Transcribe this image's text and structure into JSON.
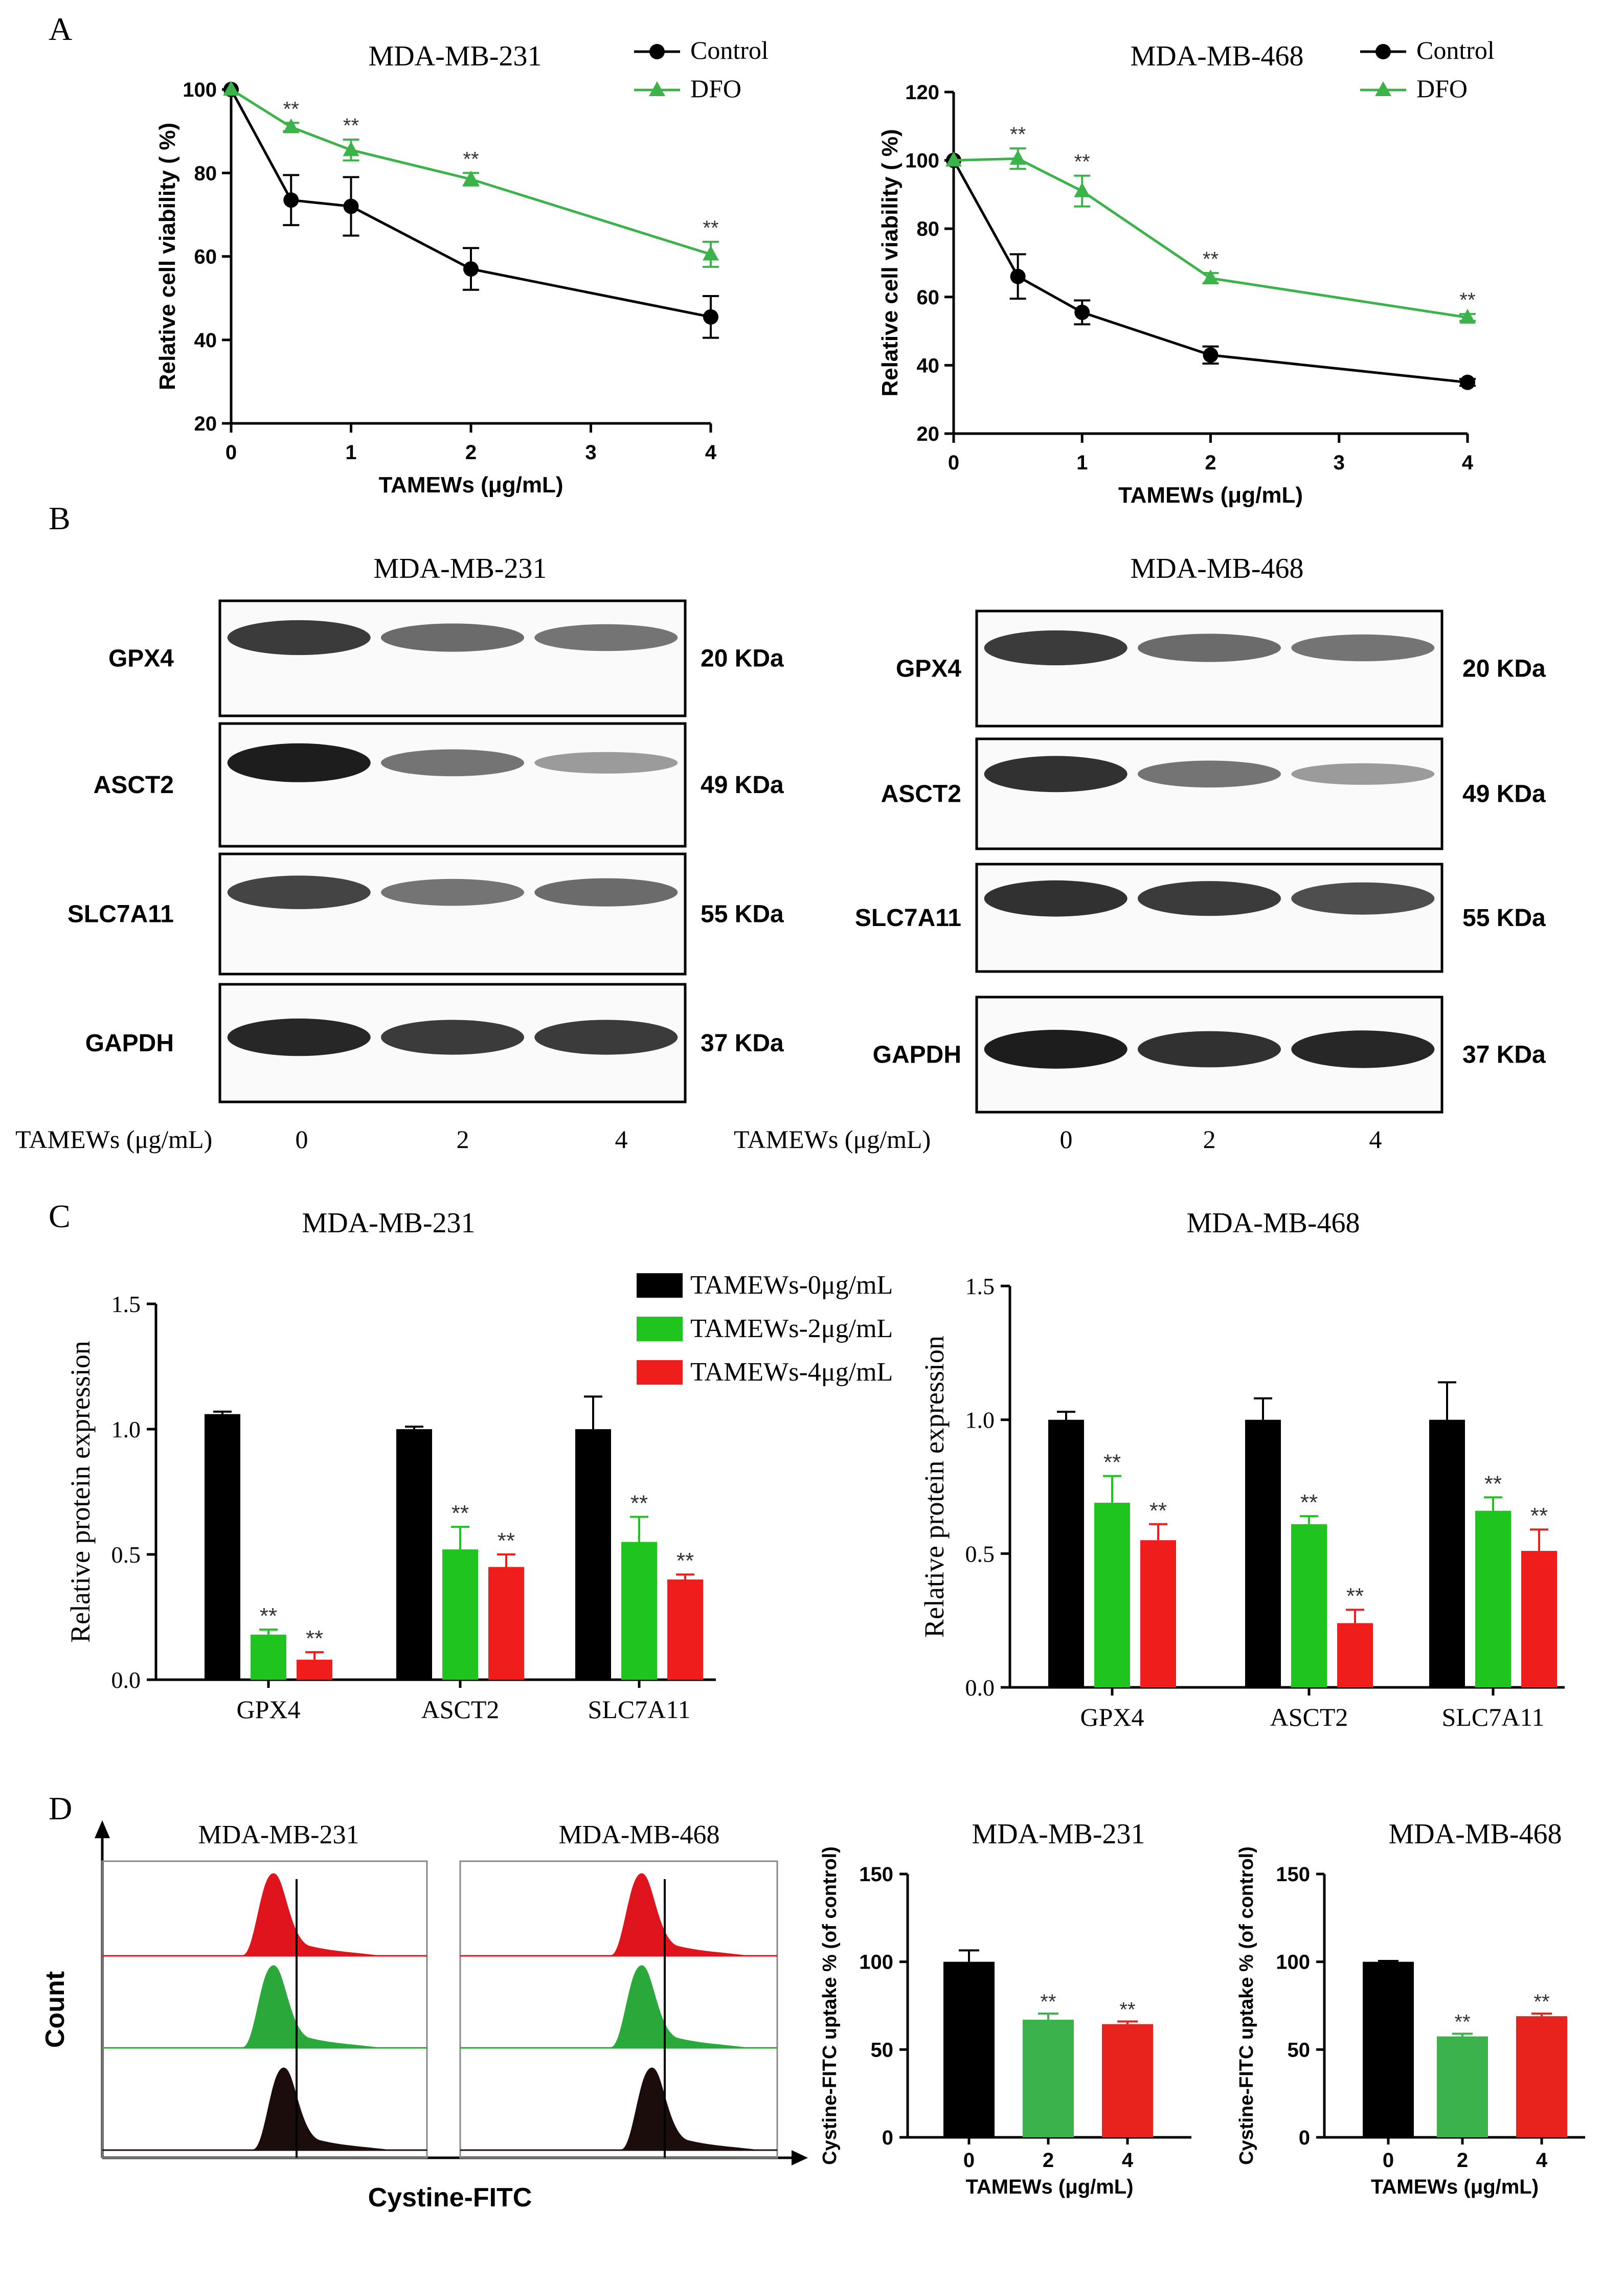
{
  "panels": {
    "A": {
      "label": "A",
      "chart_data": [
        {
          "type": "line",
          "title": "MDA-MB-231",
          "xlabel": "TAMEWs (μg/mL)",
          "ylabel": "Relative cell viability ( %)",
          "x_ticks": [
            "0",
            "1",
            "2",
            "3",
            "4"
          ],
          "y_ticks": [
            "20",
            "40",
            "60",
            "80",
            "100"
          ],
          "xlim": [
            0,
            4
          ],
          "ylim": [
            20,
            100
          ],
          "legend_position": "top-right",
          "series": [
            {
              "name": "Control",
              "color": "#000000",
              "marker": "circle",
              "x": [
                0,
                0.5,
                1,
                2,
                4
              ],
              "y": [
                100,
                73.5,
                72,
                57,
                45.5
              ],
              "err": [
                0,
                6,
                7,
                5,
                5
              ],
              "sig": [
                "",
                "",
                "",
                "",
                ""
              ]
            },
            {
              "name": "DFO",
              "color": "#3cb34a",
              "marker": "triangle",
              "x": [
                0,
                0.5,
                1,
                2,
                4
              ],
              "y": [
                100,
                91,
                85.5,
                78.5,
                60.5
              ],
              "err": [
                0,
                1,
                2.5,
                1.5,
                3
              ],
              "sig": [
                "",
                "**",
                "**",
                "**",
                "**"
              ]
            }
          ]
        },
        {
          "type": "line",
          "title": "MDA-MB-468",
          "xlabel": "TAMEWs (μg/mL)",
          "ylabel": "Relative cell viability ( %)",
          "x_ticks": [
            "0",
            "1",
            "2",
            "3",
            "4"
          ],
          "y_ticks": [
            "20",
            "40",
            "60",
            "80",
            "100",
            "120"
          ],
          "xlim": [
            0,
            4
          ],
          "ylim": [
            20,
            120
          ],
          "legend_position": "top-right",
          "series": [
            {
              "name": "Control",
              "color": "#000000",
              "marker": "circle",
              "x": [
                0,
                0.5,
                1,
                2,
                4
              ],
              "y": [
                100,
                66,
                55.5,
                43,
                35
              ],
              "err": [
                0,
                6.5,
                3.5,
                2.5,
                1
              ],
              "sig": [
                "",
                "",
                "",
                "",
                ""
              ]
            },
            {
              "name": "DFO",
              "color": "#3cb34a",
              "marker": "triangle",
              "x": [
                0,
                0.5,
                1,
                2,
                4
              ],
              "y": [
                100,
                100.5,
                91,
                65.5,
                54
              ],
              "err": [
                0,
                3,
                4.5,
                1.5,
                1
              ],
              "sig": [
                "",
                "**",
                "**",
                "**",
                "**"
              ]
            }
          ]
        }
      ]
    },
    "B": {
      "label": "B",
      "blots": [
        {
          "title": "MDA-MB-231",
          "x_axis_label": "TAMEWs (μg/mL)",
          "lanes": [
            "0",
            "2",
            "4"
          ],
          "rows": [
            {
              "protein": "GPX4",
              "size": "20 KDa",
              "intensity": [
                0.85,
                0.6,
                0.55
              ]
            },
            {
              "protein": "ASCT2",
              "size": "49 KDa",
              "intensity": [
                1.0,
                0.55,
                0.35
              ]
            },
            {
              "protein": "SLC7A11",
              "size": "55 KDa",
              "intensity": [
                0.8,
                0.55,
                0.6
              ]
            },
            {
              "protein": "GAPDH",
              "size": "37 KDa",
              "intensity": [
                0.95,
                0.85,
                0.85
              ]
            }
          ]
        },
        {
          "title": "MDA-MB-468",
          "x_axis_label": "TAMEWs (μg/mL)",
          "lanes": [
            "0",
            "2",
            "4"
          ],
          "rows": [
            {
              "protein": "GPX4",
              "size": "20 KDa",
              "intensity": [
                0.85,
                0.6,
                0.55
              ]
            },
            {
              "protein": "ASCT2",
              "size": "49 KDa",
              "intensity": [
                0.9,
                0.55,
                0.35
              ]
            },
            {
              "protein": "SLC7A11",
              "size": "55 KDa",
              "intensity": [
                0.9,
                0.85,
                0.75
              ]
            },
            {
              "protein": "GAPDH",
              "size": "37 KDa",
              "intensity": [
                1.0,
                0.9,
                0.95
              ]
            }
          ]
        }
      ]
    },
    "C": {
      "label": "C",
      "chart_data": [
        {
          "type": "bar",
          "title": "MDA-MB-231",
          "ylabel": "Relative protein expression",
          "categories": [
            "GPX4",
            "ASCT2",
            "SLC7A11"
          ],
          "y_ticks": [
            "0.0",
            "0.5",
            "1.0",
            "1.5"
          ],
          "ylim": [
            0,
            1.5
          ],
          "legend_position": "top-right",
          "series": [
            {
              "name": "TAMEWs-0μg/mL",
              "color": "#000000",
              "values": [
                1.06,
                1.0,
                1.0
              ],
              "err": [
                0.01,
                0.01,
                0.13
              ],
              "sig": [
                "",
                "",
                ""
              ]
            },
            {
              "name": "TAMEWs-2μg/mL",
              "color": "#1fc41f",
              "values": [
                0.18,
                0.52,
                0.55
              ],
              "err": [
                0.02,
                0.09,
                0.1
              ],
              "sig": [
                "**",
                "**",
                "**"
              ]
            },
            {
              "name": "TAMEWs-4μg/mL",
              "color": "#f01d1d",
              "values": [
                0.08,
                0.45,
                0.4
              ],
              "err": [
                0.03,
                0.05,
                0.02
              ],
              "sig": [
                "**",
                "**",
                "**"
              ]
            }
          ]
        },
        {
          "type": "bar",
          "title": "MDA-MB-468",
          "ylabel": "Relative protein expression",
          "categories": [
            "GPX4",
            "ASCT2",
            "SLC7A11"
          ],
          "y_ticks": [
            "0.0",
            "0.5",
            "1.0",
            "1.5"
          ],
          "ylim": [
            0,
            1.5
          ],
          "series": [
            {
              "name": "TAMEWs-0μg/mL",
              "color": "#000000",
              "values": [
                1.0,
                1.0,
                1.0
              ],
              "err": [
                0.03,
                0.08,
                0.14
              ],
              "sig": [
                "",
                "",
                ""
              ]
            },
            {
              "name": "TAMEWs-2μg/mL",
              "color": "#1fc41f",
              "values": [
                0.69,
                0.61,
                0.66
              ],
              "err": [
                0.1,
                0.03,
                0.05
              ],
              "sig": [
                "**",
                "**",
                "**"
              ]
            },
            {
              "name": "TAMEWs-4μg/mL",
              "color": "#f01d1d",
              "values": [
                0.55,
                0.24,
                0.51
              ],
              "err": [
                0.06,
                0.05,
                0.08
              ],
              "sig": [
                "**",
                "**",
                "**"
              ]
            }
          ]
        }
      ]
    },
    "D": {
      "label": "D",
      "flow": {
        "x_axis_label": "Cystine-FITC",
        "y_axis_label": "Count",
        "plots": [
          {
            "title": "MDA-MB-231",
            "colors": [
              "#e0141c",
              "#2aa83a",
              "#1a0d0b"
            ]
          },
          {
            "title": "MDA-MB-468",
            "colors": [
              "#e0141c",
              "#2aa83a",
              "#1a0d0b"
            ]
          }
        ]
      },
      "chart_data": [
        {
          "type": "bar",
          "title": "MDA-MB-231",
          "xlabel": "TAMEWs (μg/mL)",
          "ylabel": "Cystine-FITC uptake % (of control)",
          "categories": [
            "0",
            "2",
            "4"
          ],
          "y_ticks": [
            "0",
            "50",
            "100",
            "150"
          ],
          "ylim": [
            0,
            150
          ],
          "colors": [
            "#000000",
            "#3cb34a",
            "#e8231d"
          ],
          "values": [
            100,
            67,
            64.5
          ],
          "err": [
            6.5,
            3.5,
            1.5
          ],
          "sig": [
            "",
            "**",
            "**"
          ]
        },
        {
          "type": "bar",
          "title": "MDA-MB-468",
          "xlabel": "TAMEWs (μg/mL)",
          "ylabel": "Cystine-FITC uptake % (of control)",
          "categories": [
            "0",
            "2",
            "4"
          ],
          "y_ticks": [
            "0",
            "50",
            "100",
            "150"
          ],
          "ylim": [
            0,
            150
          ],
          "colors": [
            "#000000",
            "#3cb34a",
            "#e8231d"
          ],
          "values": [
            100,
            57.5,
            69
          ],
          "err": [
            0.5,
            1.5,
            1.5
          ],
          "sig": [
            "",
            "**",
            "**"
          ]
        }
      ]
    }
  }
}
